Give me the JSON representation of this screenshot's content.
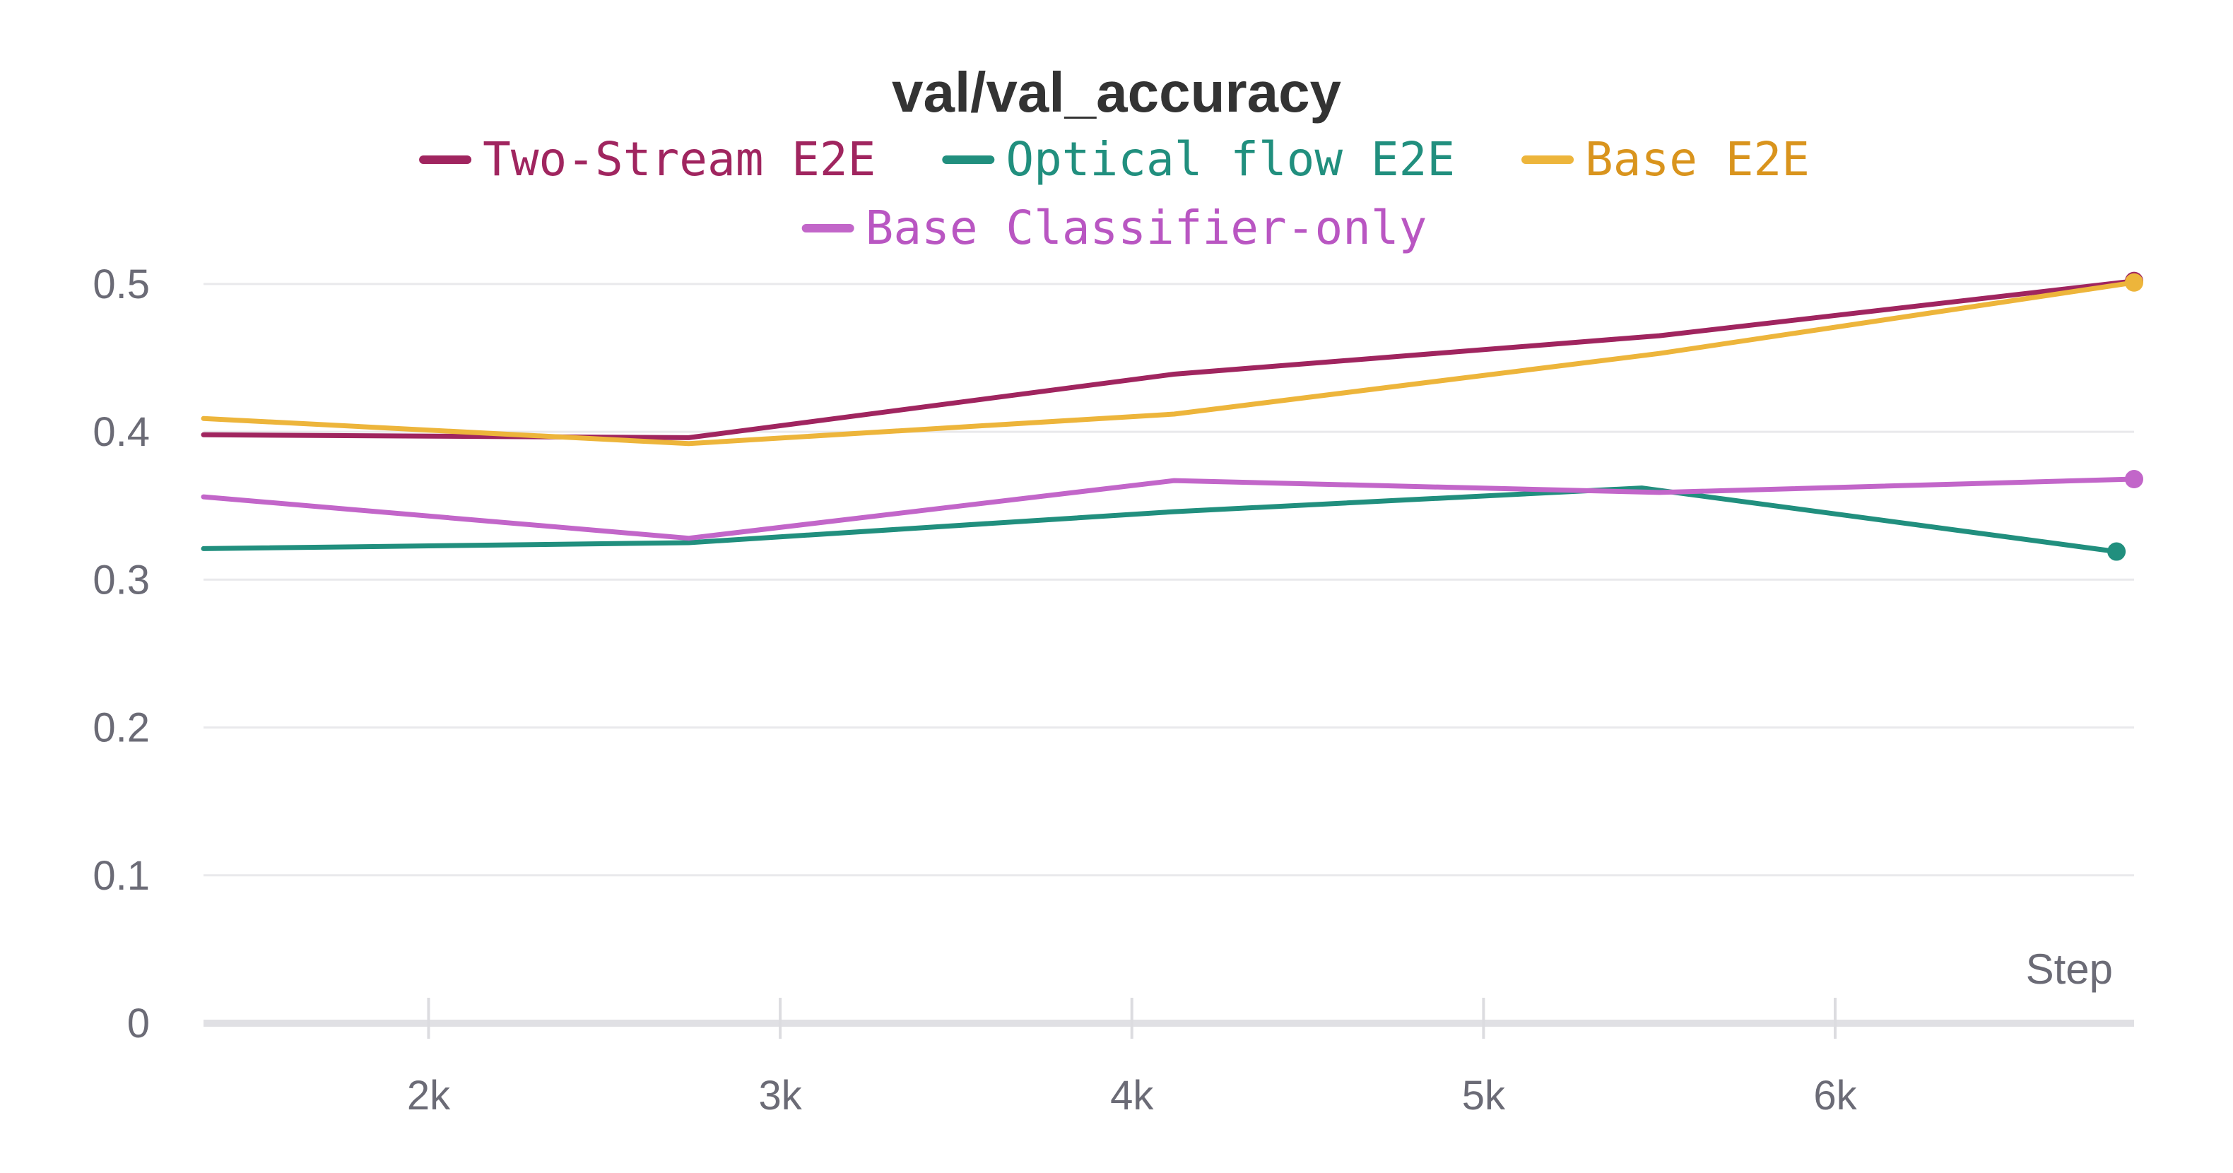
{
  "chart_data": {
    "type": "line",
    "title": "val/val_accuracy",
    "xlabel": "Step",
    "ylabel": "",
    "xlim": [
      1360,
      6850
    ],
    "ylim": [
      0,
      0.52
    ],
    "grid": true,
    "legend_placement": "top-center",
    "x_ticks": [
      {
        "value": 2000,
        "label": "2k"
      },
      {
        "value": 3000,
        "label": "3k"
      },
      {
        "value": 4000,
        "label": "4k"
      },
      {
        "value": 5000,
        "label": "5k"
      },
      {
        "value": 6000,
        "label": "6k"
      }
    ],
    "y_ticks": [
      {
        "value": 0,
        "label": "0"
      },
      {
        "value": 0.1,
        "label": "0.1"
      },
      {
        "value": 0.2,
        "label": "0.2"
      },
      {
        "value": 0.3,
        "label": "0.3"
      },
      {
        "value": 0.4,
        "label": "0.4"
      },
      {
        "value": 0.5,
        "label": "0.5"
      }
    ],
    "series": [
      {
        "name": "Two-Stream E2E",
        "color": "#a0255f",
        "text_color": "#a0255f",
        "x": [
          1360,
          2740,
          4120,
          5500,
          6850
        ],
        "y": [
          0.398,
          0.396,
          0.439,
          0.465,
          0.502
        ]
      },
      {
        "name": "Optical flow E2E",
        "color": "#218f7e",
        "text_color": "#218f7e",
        "x": [
          1360,
          2740,
          4120,
          5450,
          6800
        ],
        "y": [
          0.321,
          0.325,
          0.346,
          0.362,
          0.319
        ]
      },
      {
        "name": "Base E2E",
        "color": "#edb53b",
        "text_color": "#d9941d",
        "x": [
          1360,
          2740,
          4120,
          5500,
          6850
        ],
        "y": [
          0.409,
          0.392,
          0.412,
          0.453,
          0.501
        ]
      },
      {
        "name": "Base Classifier-only",
        "color": "#c266c9",
        "text_color": "#b956c2",
        "x": [
          1360,
          2740,
          4120,
          5500,
          6850
        ],
        "y": [
          0.356,
          0.328,
          0.367,
          0.359,
          0.368
        ]
      }
    ]
  }
}
